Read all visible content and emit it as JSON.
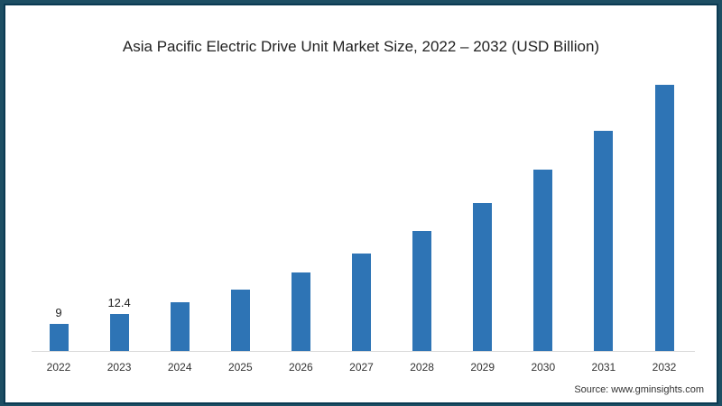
{
  "chart_data": {
    "type": "bar",
    "title": "Asia Pacific Electric Drive Unit Market Size, 2022 – 2032 (USD Billion)",
    "xlabel": "",
    "ylabel": "",
    "categories": [
      "2022",
      "2023",
      "2024",
      "2025",
      "2026",
      "2027",
      "2028",
      "2029",
      "2030",
      "2031",
      "2032"
    ],
    "values": [
      9,
      12.4,
      16.2,
      20.4,
      26.1,
      32.4,
      39.9,
      49.2,
      60.3,
      73.2,
      88.5
    ],
    "data_labels": {
      "2022": "9",
      "2023": "12.4"
    },
    "bar_color": "#2e74b5",
    "grid": false,
    "legend": null
  },
  "source": "Source: www.gminsights.com",
  "colors": {
    "frame_border": "#0b3a52",
    "background": "#1d4e63",
    "bar": "#2e74b5"
  }
}
